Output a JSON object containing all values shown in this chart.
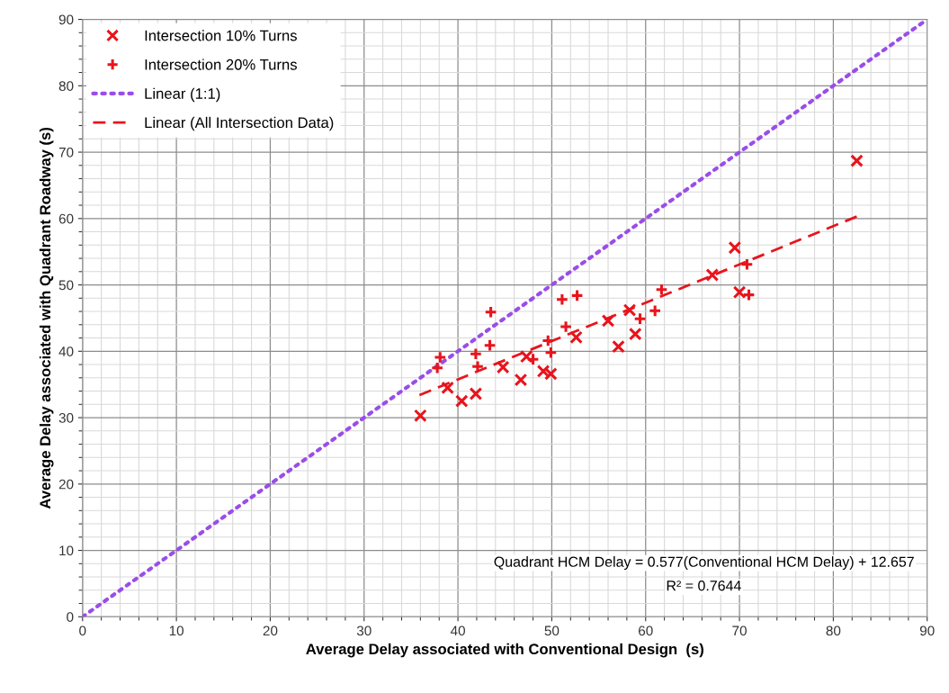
{
  "chart_data": {
    "type": "scatter",
    "xlabel": "Average Delay associated with Conventional Design  (s)",
    "ylabel": "Average Delay associated with Quadrant Roadway (s)",
    "xlim": [
      0,
      90
    ],
    "ylim": [
      0,
      90
    ],
    "xticks": [
      0,
      10,
      20,
      30,
      40,
      50,
      60,
      70,
      80,
      90
    ],
    "yticks": [
      0,
      10,
      20,
      30,
      40,
      50,
      60,
      70,
      80,
      90
    ],
    "grid": true,
    "legend": "top left",
    "series": [
      {
        "name": "Intersection 10% Turns",
        "marker": "cross",
        "color": "#e8141c",
        "x": [
          36.0,
          38.9,
          40.4,
          41.9,
          44.8,
          46.7,
          47.3,
          49.1,
          49.9,
          52.6,
          56.0,
          57.1,
          58.3,
          58.9,
          67.1,
          69.5,
          70.0,
          82.5
        ],
        "values": [
          30.3,
          34.5,
          32.5,
          33.6,
          37.6,
          35.7,
          39.2,
          37.0,
          36.6,
          42.1,
          44.6,
          40.7,
          46.2,
          42.6,
          51.5,
          55.6,
          48.9,
          68.7
        ]
      },
      {
        "name": "Intersection 20% Turns",
        "marker": "plus",
        "color": "#e8141c",
        "x": [
          37.8,
          38.1,
          41.9,
          42.1,
          43.4,
          43.5,
          48.0,
          49.6,
          49.9,
          51.1,
          51.5,
          52.7,
          59.4,
          61.0,
          61.7,
          70.8,
          71.0
        ],
        "values": [
          37.5,
          39.1,
          39.6,
          37.7,
          40.9,
          45.9,
          38.8,
          41.6,
          39.8,
          47.8,
          43.7,
          48.4,
          44.9,
          46.1,
          49.3,
          53.1,
          48.5
        ]
      },
      {
        "name": "Linear (1:1)",
        "type": "line",
        "line_style": "dotted",
        "color": "#9a4de8",
        "x": [
          0,
          90
        ],
        "values": [
          0,
          90
        ]
      },
      {
        "name": "Linear (All Intersection Data)",
        "type": "line",
        "line_style": "dashed",
        "color": "#e8141c",
        "x": [
          35.9,
          82.5
        ],
        "values": [
          33.4,
          60.3
        ]
      }
    ],
    "annotations": [
      "Quadrant HCM Delay = 0.577(Conventional HCM Delay) + 12.657",
      "R² = 0.7644"
    ]
  }
}
